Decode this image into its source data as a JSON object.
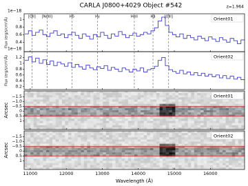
{
  "chart_data": [
    {
      "type": "line",
      "title": "CARLA J0800+4029 Object #542",
      "annotation": "z=1.964",
      "ylabel": "Flux (erg/s/cm²/Å)",
      "y_offset_label": "1e−18",
      "x": [
        10900,
        11000,
        11100,
        11200,
        11300,
        11400,
        11500,
        11600,
        11700,
        11800,
        11900,
        12000,
        12100,
        12200,
        12300,
        12400,
        12500,
        12600,
        12700,
        12800,
        12900,
        13000,
        13100,
        13200,
        13300,
        13400,
        13500,
        13600,
        13700,
        13800,
        13900,
        14000,
        14100,
        14200,
        14300,
        14400,
        14500,
        14600,
        14700,
        14800,
        14900,
        15000,
        15100,
        15200,
        15300,
        15400,
        15500,
        15600,
        15700,
        15800,
        15900,
        16000,
        16100,
        16200,
        16300,
        16400,
        16500,
        16600,
        16700,
        16800,
        16900
      ],
      "series": [
        {
          "name": "Orient01",
          "color": "#3b3bc8",
          "values": [
            0.62,
            0.7,
            0.58,
            0.66,
            0.72,
            0.6,
            0.55,
            0.64,
            0.7,
            0.58,
            0.62,
            0.52,
            0.6,
            0.66,
            0.58,
            0.5,
            0.62,
            0.56,
            0.48,
            0.6,
            0.54,
            0.66,
            0.58,
            0.5,
            0.62,
            0.56,
            0.68,
            0.6,
            0.52,
            0.58,
            0.64,
            0.56,
            0.6,
            0.66,
            0.62,
            0.7,
            0.78,
            0.96,
            1.06,
            0.84,
            0.66,
            0.6,
            0.54,
            0.62,
            0.5,
            0.58,
            0.52,
            0.46,
            0.56,
            0.5,
            0.44,
            0.54,
            0.48,
            0.42,
            0.52,
            0.46,
            0.4,
            0.5,
            0.44,
            0.36,
            0.46
          ]
        }
      ],
      "xlim": [
        10830,
        16950
      ],
      "ylim": [
        0.15,
        1.15
      ],
      "yticks": [
        0.4,
        0.6,
        0.8,
        1.0
      ],
      "line_markers": [
        {
          "label": "[OII]",
          "value": 11047
        },
        {
          "label": "[NeIII]",
          "value": 11468
        },
        {
          "label": "Hδ",
          "value": 12158
        },
        {
          "label": "Hγ",
          "value": 12866
        },
        {
          "label": "HeII",
          "value": 13889
        },
        {
          "label": "Hβ",
          "value": 14408
        },
        {
          "label": "[OIII]",
          "value": 14841
        }
      ]
    },
    {
      "type": "line",
      "ylabel": "Flux (erg/s/cm²/Å)",
      "y_offset_label": "1e−18",
      "x": [
        10900,
        11000,
        11100,
        11200,
        11300,
        11400,
        11500,
        11600,
        11700,
        11800,
        11900,
        12000,
        12100,
        12200,
        12300,
        12400,
        12500,
        12600,
        12700,
        12800,
        12900,
        13000,
        13100,
        13200,
        13300,
        13400,
        13500,
        13600,
        13700,
        13800,
        13900,
        14000,
        14100,
        14200,
        14300,
        14400,
        14500,
        14600,
        14700,
        14800,
        14900,
        15000,
        15100,
        15200,
        15300,
        15400,
        15500,
        15600,
        15700,
        15800,
        15900,
        16000,
        16100,
        16200,
        16300,
        16400,
        16500,
        16600,
        16700,
        16800,
        16900
      ],
      "series": [
        {
          "name": "Orient02",
          "color": "#3b3bc8",
          "values": [
            1.1,
            1.22,
            1.05,
            1.18,
            1.0,
            1.12,
            0.96,
            1.08,
            0.92,
            1.04,
            0.98,
            0.9,
            1.02,
            0.86,
            0.96,
            0.88,
            0.8,
            0.94,
            0.84,
            0.78,
            0.88,
            0.82,
            0.92,
            0.76,
            0.86,
            0.8,
            0.72,
            0.84,
            0.78,
            0.7,
            0.8,
            0.74,
            0.84,
            0.7,
            0.78,
            0.82,
            0.9,
            1.1,
            1.2,
            0.92,
            0.78,
            0.72,
            0.66,
            0.76,
            0.64,
            0.7,
            0.6,
            0.68,
            0.58,
            0.66,
            0.56,
            0.62,
            0.54,
            0.6,
            0.5,
            0.58,
            0.48,
            0.56,
            0.46,
            0.52,
            0.44
          ]
        }
      ],
      "xlim": [
        10830,
        16950
      ],
      "ylim": [
        0.1,
        1.4
      ],
      "yticks": [
        0.2,
        0.4,
        0.6,
        0.8,
        1.0,
        1.2
      ]
    },
    {
      "type": "image",
      "name": "Orient01",
      "ylabel": "Arcsec",
      "xlim": [
        10830,
        16950
      ],
      "ylim": [
        -2.1,
        1.9
      ],
      "yticks": [
        {
          "value": -1.5,
          "label": "−1.5"
        },
        {
          "value": -1.0,
          "label": "−1.0"
        },
        {
          "value": -0.5,
          "label": "−0.5"
        },
        0.0,
        0.5,
        1.0
      ],
      "hlines": [
        -0.5,
        0.5
      ],
      "hline_color": "#d04040"
    },
    {
      "type": "image",
      "name": "Orient02",
      "ylabel": "Arcsec",
      "xlim": [
        10830,
        16950
      ],
      "ylim": [
        -2.1,
        1.9
      ],
      "yticks": [
        {
          "value": -1.5,
          "label": "−1.5"
        },
        {
          "value": -1.0,
          "label": "−1.0"
        },
        {
          "value": -0.5,
          "label": "−0.5"
        },
        0.0,
        0.5,
        1.0
      ],
      "hlines": [
        -0.5,
        0.5
      ],
      "hline_color": "#d04040",
      "xlabel": "Wavelength (Å)",
      "xticks": [
        11000,
        12000,
        13000,
        14000,
        15000,
        16000
      ]
    }
  ]
}
